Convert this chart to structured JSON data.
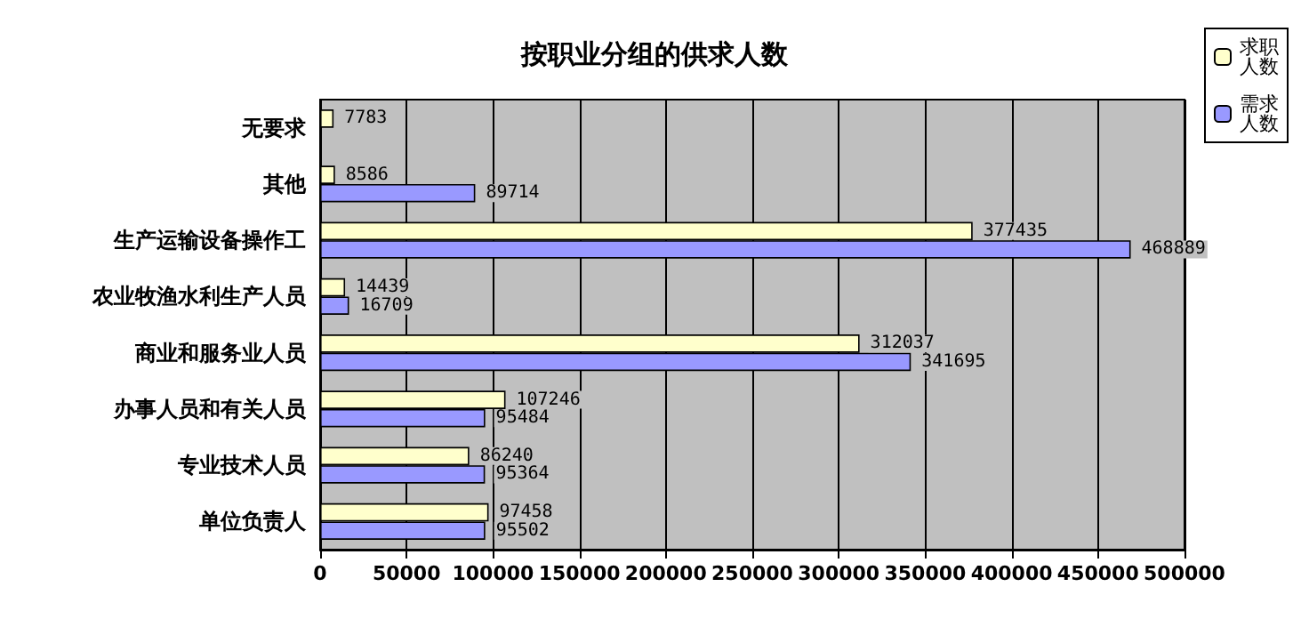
{
  "chart_data": {
    "type": "bar",
    "orientation": "horizontal",
    "title": "按职业分组的供求人数",
    "categories": [
      "无要求",
      "其他",
      "生产运输设备操作工",
      "农业牧渔水利生产人员",
      "商业和服务业人员",
      "办事人员和有关人员",
      "专业技术人员",
      "单位负责人"
    ],
    "series": [
      {
        "name": "求职人数",
        "color": "#ffffcc",
        "values": [
          7783,
          8586,
          377435,
          14439,
          312037,
          107246,
          86240,
          97458
        ]
      },
      {
        "name": "需求人数",
        "color": "#9999ff",
        "values": [
          null,
          89714,
          468889,
          16709,
          341695,
          95484,
          95364,
          95502
        ]
      }
    ],
    "xlim": [
      0,
      500000
    ],
    "xticks": [
      0,
      50000,
      100000,
      150000,
      200000,
      250000,
      300000,
      350000,
      400000,
      450000,
      500000
    ],
    "grid": "x",
    "legend": "top right",
    "data_labels": true
  }
}
